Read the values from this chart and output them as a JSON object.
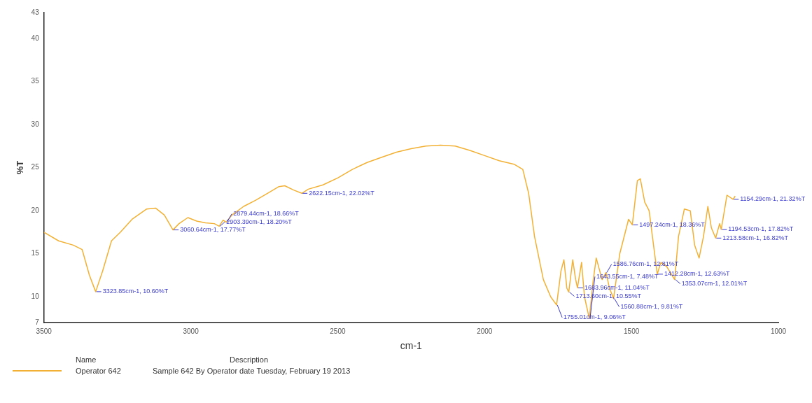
{
  "chart_data": {
    "type": "line",
    "xlabel": "cm-1",
    "ylabel": "%T",
    "xlim": [
      3500,
      1000
    ],
    "xticks": [
      3500,
      3000,
      2500,
      2000,
      1500,
      1000
    ],
    "ylim": [
      7,
      43
    ],
    "yticks": [
      7,
      10,
      15,
      20,
      25,
      30,
      35,
      40,
      43
    ],
    "grid": false,
    "legend": "bottom",
    "x": [
      3500,
      3450,
      3400,
      3370,
      3345,
      3323.85,
      3300,
      3270,
      3240,
      3200,
      3150,
      3120,
      3090,
      3060.64,
      3040,
      3010,
      2980,
      2950,
      2920,
      2903.39,
      2890,
      2879.44,
      2860,
      2820,
      2780,
      2740,
      2700,
      2680,
      2650,
      2622.15,
      2600,
      2550,
      2500,
      2450,
      2400,
      2350,
      2300,
      2250,
      2200,
      2150,
      2100,
      2050,
      2000,
      1950,
      1900,
      1870,
      1850,
      1830,
      1800,
      1775,
      1755.01,
      1740,
      1730,
      1720,
      1713.6,
      1700,
      1690,
      1683.96,
      1670,
      1660,
      1643.55,
      1630,
      1620,
      1600,
      1586.76,
      1575,
      1560.88,
      1540,
      1510,
      1497.24,
      1480,
      1470,
      1455,
      1440,
      1425,
      1412.28,
      1400,
      1380,
      1353.07,
      1340,
      1320,
      1300,
      1285,
      1270,
      1255,
      1240,
      1228,
      1213.58,
      1200,
      1194.53,
      1175,
      1154.29,
      1147
    ],
    "series": [
      {
        "name": "Operator 642",
        "color": "#f2b134",
        "values": [
          17.5,
          16.5,
          16.0,
          15.5,
          12.5,
          10.6,
          13.0,
          16.5,
          17.5,
          19.0,
          20.2,
          20.3,
          19.5,
          17.77,
          18.5,
          19.2,
          18.8,
          18.6,
          18.5,
          18.2,
          18.9,
          18.66,
          19.5,
          20.5,
          21.2,
          22.0,
          22.8,
          22.9,
          22.4,
          22.02,
          22.5,
          23.0,
          23.8,
          24.8,
          25.6,
          26.2,
          26.8,
          27.2,
          27.5,
          27.6,
          27.5,
          27.0,
          26.4,
          25.8,
          25.4,
          24.8,
          22.0,
          17.0,
          12.0,
          10.0,
          9.06,
          13.0,
          14.3,
          11.0,
          10.55,
          14.3,
          12.0,
          11.04,
          14.0,
          10.0,
          7.48,
          12.0,
          14.5,
          12.0,
          12.81,
          11.0,
          9.81,
          15.0,
          19.0,
          18.36,
          23.5,
          23.7,
          21.0,
          20.0,
          16.0,
          12.63,
          14.0,
          13.5,
          12.01,
          17.0,
          20.2,
          20.0,
          16.0,
          14.5,
          17.0,
          20.5,
          18.0,
          16.82,
          18.5,
          17.82,
          21.8,
          21.32,
          21.7
        ]
      }
    ],
    "annotations": [
      {
        "text": "3323.85cm-1, 10.60%T",
        "x": 3323.85,
        "y": 10.6
      },
      {
        "text": "3060.64cm-1, 17.77%T",
        "x": 3060.64,
        "y": 17.77
      },
      {
        "text": "2903.39cm-1, 18.20%T",
        "x": 2903.39,
        "y": 18.2
      },
      {
        "text": "2879.44cm-1, 18.66%T",
        "x": 2879.44,
        "y": 18.66
      },
      {
        "text": "2622.15cm-1, 22.02%T",
        "x": 2622.15,
        "y": 22.02
      },
      {
        "text": "1497.24cm-1, 18.36%T",
        "x": 1497.24,
        "y": 18.36
      },
      {
        "text": "1154.29cm-1, 21.32%T",
        "x": 1154.29,
        "y": 21.32
      },
      {
        "text": "1194.53cm-1, 17.82%T",
        "x": 1194.53,
        "y": 17.82
      },
      {
        "text": "1213.58cm-1, 16.82%T",
        "x": 1213.58,
        "y": 16.82
      },
      {
        "text": "1412.28cm-1, 12.63%T",
        "x": 1412.28,
        "y": 12.63
      },
      {
        "text": "1353.07cm-1, 12.01%T",
        "x": 1353.07,
        "y": 12.01
      },
      {
        "text": "1683.96cm-1, 11.04%T",
        "x": 1683.96,
        "y": 11.04
      },
      {
        "text": "1713.60cm-1, 10.55%T",
        "x": 1713.6,
        "y": 10.55
      },
      {
        "text": "1586.76cm-1, 12.81%T",
        "x": 1586.76,
        "y": 12.81
      },
      {
        "text": "1560.88cm-1, 9.81%T",
        "x": 1560.88,
        "y": 9.81
      },
      {
        "text": "1755.01cm-1, 9.06%T",
        "x": 1755.01,
        "y": 9.06
      },
      {
        "text": "1643.55cm-1, 7.48%T",
        "x": 1643.55,
        "y": 7.48
      },
      "Name",
      "Description",
      "Sample 642 By Operator date Tuesday, February 19 2013"
    ]
  }
}
